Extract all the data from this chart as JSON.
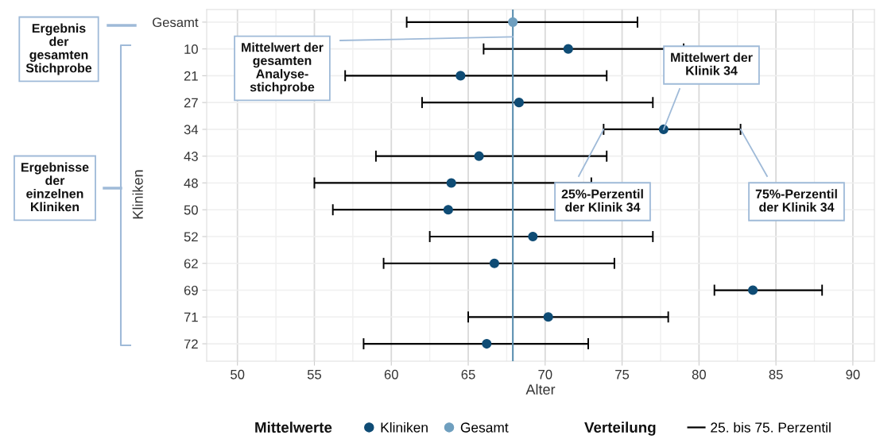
{
  "chart_data": {
    "type": "scatter",
    "orientation": "horizontal",
    "categories": [
      "Gesamt",
      "10",
      "21",
      "27",
      "34",
      "43",
      "48",
      "50",
      "52",
      "62",
      "69",
      "71",
      "72"
    ],
    "series": [
      {
        "name": "Kliniken",
        "color": "#0f4c75",
        "values": [
          null,
          71.5,
          64.5,
          68.3,
          77.7,
          65.7,
          63.9,
          63.7,
          69.2,
          66.7,
          83.5,
          70.2,
          66.2
        ],
        "errors": [
          null,
          [
            66.0,
            79.0
          ],
          [
            57.0,
            74.0
          ],
          [
            62.0,
            77.0
          ],
          [
            73.8,
            82.7
          ],
          [
            59.0,
            74.0
          ],
          [
            55.0,
            73.0
          ],
          [
            56.2,
            72.0
          ],
          [
            62.5,
            77.0
          ],
          [
            59.5,
            74.5
          ],
          [
            81.0,
            88.0
          ],
          [
            65.0,
            78.0
          ],
          [
            58.2,
            72.8
          ]
        ]
      },
      {
        "name": "Gesamt",
        "color": "#6f9fbf",
        "values": [
          67.9,
          null,
          null,
          null,
          null,
          null,
          null,
          null,
          null,
          null,
          null,
          null,
          null
        ],
        "errors": [
          [
            61.0,
            76.0
          ],
          null,
          null,
          null,
          null,
          null,
          null,
          null,
          null,
          null,
          null,
          null,
          null
        ]
      }
    ],
    "xlabel": "Alter",
    "ylabel": "Kliniken",
    "legend_title": "Mittelwerte",
    "xlim": [
      48,
      91.4
    ],
    "xticks": [
      50,
      55,
      60,
      65,
      70,
      75,
      80,
      85,
      90
    ],
    "ref_lines": [
      {
        "axis": "x",
        "value": 67.9,
        "color": "#5b8fb0"
      }
    ],
    "grid": true,
    "legend": "bottom",
    "marker": "circle",
    "annotations": [
      "Ergebnis\nder\ngesamten\nStichprobe",
      "Ergebnisse\nder\neinzelnen\nKliniken",
      "Mittelwert der\ngesamten\nAnalyse-\nstichprobe",
      {
        "text": "Mittelwert der\nKlinik 34",
        "x": 77.7,
        "y": "34"
      },
      {
        "text": "25%-Perzentil\nder Klinik 34",
        "x": 73.8,
        "y": "34"
      },
      {
        "text": "75%-Perzentil\nder Klinik 34",
        "x": 82.7,
        "y": "34"
      },
      "Verteilung",
      "25. bis 75. Perzentil"
    ]
  }
}
